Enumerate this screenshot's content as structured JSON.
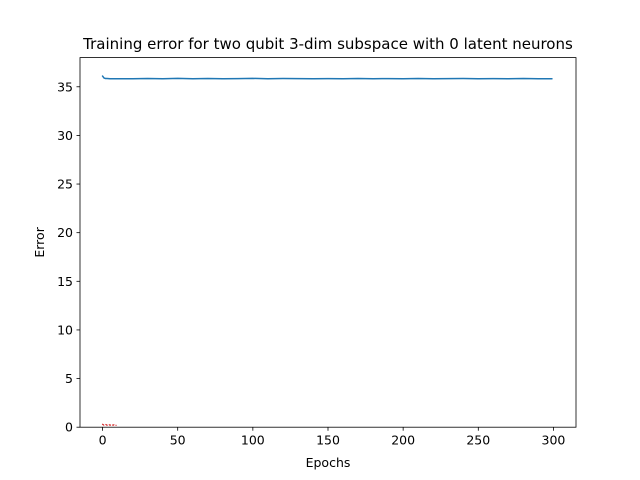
{
  "chart_data": {
    "type": "line",
    "title": "Training error for two qubit 3-dim subspace with 0 latent neurons",
    "xlabel": "Epochs",
    "ylabel": "Error",
    "xlim": [
      -15,
      315
    ],
    "ylim": [
      0,
      38
    ],
    "xticks": [
      "0",
      "50",
      "100",
      "150",
      "200",
      "250",
      "300"
    ],
    "yticks": [
      "0",
      "5",
      "10",
      "15",
      "20",
      "25",
      "30",
      "35"
    ],
    "grid": false,
    "series": [
      {
        "color": "#1f77b4",
        "x": [
          0,
          1,
          2,
          3,
          5,
          10,
          20,
          30,
          40,
          50,
          60,
          70,
          80,
          90,
          100,
          110,
          120,
          130,
          140,
          150,
          160,
          170,
          180,
          190,
          200,
          210,
          220,
          230,
          240,
          250,
          260,
          270,
          280,
          290,
          299
        ],
        "y": [
          36.1,
          35.9,
          35.85,
          35.85,
          35.83,
          35.83,
          35.82,
          35.85,
          35.83,
          35.86,
          35.83,
          35.85,
          35.83,
          35.84,
          35.86,
          35.83,
          35.85,
          35.84,
          35.83,
          35.84,
          35.83,
          35.85,
          35.83,
          35.84,
          35.83,
          35.85,
          35.83,
          35.84,
          35.85,
          35.83,
          35.84,
          35.83,
          35.85,
          35.83,
          35.83
        ]
      },
      {
        "color": "#d62728",
        "style": "dotted",
        "x": [
          0,
          1,
          2,
          3,
          4,
          5,
          6,
          7,
          8,
          9
        ],
        "y": [
          0.3,
          0.2,
          0.3,
          0.2,
          0.3,
          0.2,
          0.3,
          0.2,
          0.3,
          0.2
        ]
      }
    ]
  }
}
